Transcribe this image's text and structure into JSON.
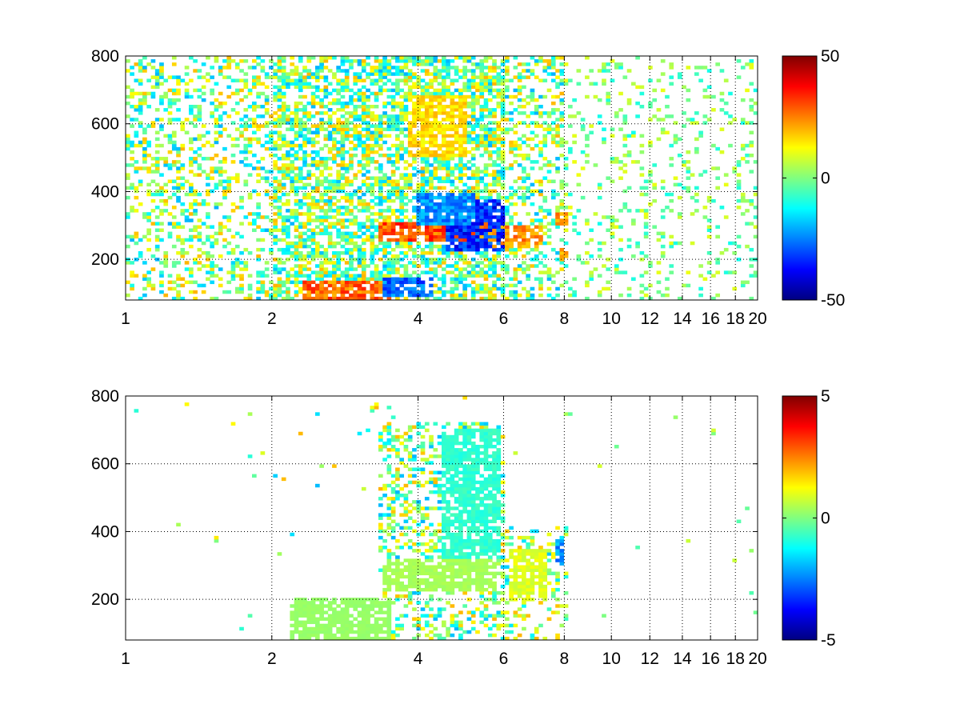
{
  "chart_data": [
    {
      "type": "heatmap",
      "title": "",
      "xlabel": "",
      "ylabel": "",
      "x_scale": "log",
      "xlim": [
        1,
        20
      ],
      "ylim": [
        80,
        800
      ],
      "x_ticks": [
        1,
        2,
        4,
        6,
        8,
        10,
        12,
        14,
        16,
        18,
        20
      ],
      "y_ticks": [
        200,
        400,
        600,
        800
      ],
      "x_tick_labels": [
        "1",
        "2",
        "4",
        "6",
        "8",
        "10",
        "12",
        "14",
        "16",
        "18",
        "20"
      ],
      "y_tick_labels": [
        "200",
        "400",
        "600",
        "800"
      ],
      "grid": "dotted",
      "colormap": "jet",
      "clim": [
        -50,
        50
      ],
      "colorbar_ticks": [
        -50,
        0,
        50
      ],
      "colorbar_tick_labels": [
        "-50",
        "0",
        "50"
      ],
      "features": [
        {
          "x": [
            2.3,
            3.5
          ],
          "y": [
            80,
            140
          ],
          "value": 35
        },
        {
          "x": [
            3.3,
            5.8
          ],
          "y": [
            250,
            310
          ],
          "value": 38
        },
        {
          "x": [
            5.2,
            7.2
          ],
          "y": [
            230,
            300
          ],
          "value": 30
        },
        {
          "x": [
            3.4,
            4.3
          ],
          "y": [
            90,
            150
          ],
          "value": -35
        },
        {
          "x": [
            4.6,
            6.0
          ],
          "y": [
            220,
            380
          ],
          "value": -42
        },
        {
          "x": [
            4.0,
            5.2
          ],
          "y": [
            300,
            400
          ],
          "value": -30
        },
        {
          "x": [
            3.8,
            5.0
          ],
          "y": [
            500,
            680
          ],
          "value": 20
        },
        {
          "x": [
            7.6,
            8.1
          ],
          "y": [
            300,
            340
          ],
          "value": 30
        },
        {
          "x": [
            7.8,
            8.2
          ],
          "y": [
            200,
            230
          ],
          "value": 25
        }
      ]
    },
    {
      "type": "heatmap",
      "title": "",
      "xlabel": "",
      "ylabel": "",
      "x_scale": "log",
      "xlim": [
        1,
        20
      ],
      "ylim": [
        80,
        800
      ],
      "x_ticks": [
        1,
        2,
        4,
        6,
        8,
        10,
        12,
        14,
        16,
        18,
        20
      ],
      "y_ticks": [
        200,
        400,
        600,
        800
      ],
      "x_tick_labels": [
        "1",
        "2",
        "4",
        "6",
        "8",
        "10",
        "12",
        "14",
        "16",
        "18",
        "20"
      ],
      "y_tick_labels": [
        "200",
        "400",
        "600",
        "800"
      ],
      "grid": "dotted",
      "colormap": "jet",
      "clim": [
        -5,
        5
      ],
      "colorbar_ticks": [
        -5,
        0,
        5
      ],
      "colorbar_tick_labels": [
        "-5",
        "0",
        "5"
      ],
      "features": [
        {
          "x": [
            3.4,
            5.8
          ],
          "y": [
            220,
            320
          ],
          "value": 0.5
        },
        {
          "x": [
            4.5,
            5.9
          ],
          "y": [
            320,
            700
          ],
          "value": -1.0
        },
        {
          "x": [
            6.2,
            7.3
          ],
          "y": [
            200,
            350
          ],
          "value": 1.2
        },
        {
          "x": [
            7.6,
            8.0
          ],
          "y": [
            300,
            380
          ],
          "value": -3.0
        },
        {
          "x": [
            2.2,
            3.5
          ],
          "y": [
            80,
            200
          ],
          "value": 0.3
        }
      ]
    }
  ]
}
